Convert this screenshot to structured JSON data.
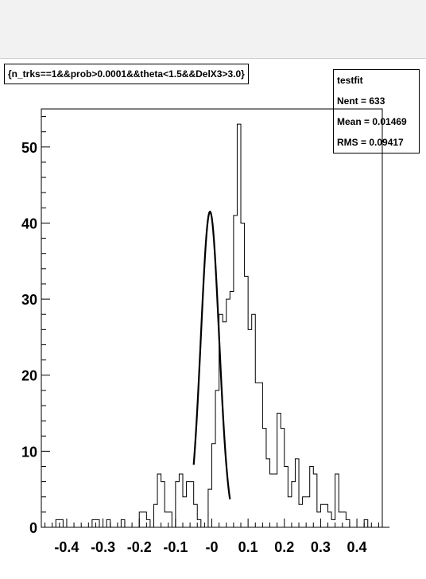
{
  "header": {
    "title": "{n_trks==1&&prob>0.0001&&theta<1.5&&DelX3>3.0}"
  },
  "stats": {
    "name": "testfit",
    "rows": [
      {
        "label": "Nent = 633"
      },
      {
        "label": "Mean  = 0.01469"
      },
      {
        "label": "RMS   = 0.09417"
      }
    ]
  },
  "chart_data": {
    "type": "bar",
    "subtype": "histogram",
    "title": "{n_trks==1&&prob>0.0001&&theta<1.5&&DelX3>3.0}",
    "xlim": [
      -0.47,
      0.47
    ],
    "ylim": [
      0,
      55
    ],
    "bin_width": 0.01,
    "bin_start": -0.47,
    "counts": [
      0,
      0,
      0,
      0,
      1,
      1,
      0,
      0,
      0,
      0,
      0,
      0,
      0,
      0,
      1,
      1,
      0,
      0,
      1,
      0,
      0,
      0,
      1,
      0,
      0,
      0,
      0,
      2,
      2,
      1,
      0,
      3,
      7,
      6,
      2,
      2,
      0,
      6,
      7,
      4,
      6,
      6,
      3,
      1,
      0,
      0,
      5,
      11,
      18,
      28,
      27,
      30,
      31,
      41,
      53,
      40,
      33,
      26,
      28,
      19,
      19,
      13,
      9,
      7,
      7,
      15,
      13,
      8,
      4,
      6,
      9,
      3,
      4,
      4,
      8,
      7,
      2,
      3,
      3,
      2,
      1,
      7,
      2,
      2,
      1,
      0,
      0,
      0,
      0,
      1,
      0,
      0,
      0,
      0,
      0,
      0
    ],
    "fit": {
      "type": "gaussian",
      "amplitude": 41.5,
      "mean": -0.005,
      "sigma": 0.025,
      "range": [
        -0.05,
        0.05
      ]
    },
    "xticks": [
      -0.4,
      -0.3,
      -0.2,
      -0.1,
      0,
      0.1,
      0.2,
      0.3,
      0.4
    ],
    "xtick_labels": [
      "-0.4",
      "-0.3",
      "-0.2",
      "-0.1",
      "-0",
      "0.1",
      "0.2",
      "0.3",
      "0.4"
    ],
    "yticks": [
      0,
      10,
      20,
      30,
      40,
      50
    ],
    "ytick_labels": [
      "0",
      "10",
      "20",
      "30",
      "40",
      "50"
    ],
    "grid": false,
    "legend": "none"
  }
}
